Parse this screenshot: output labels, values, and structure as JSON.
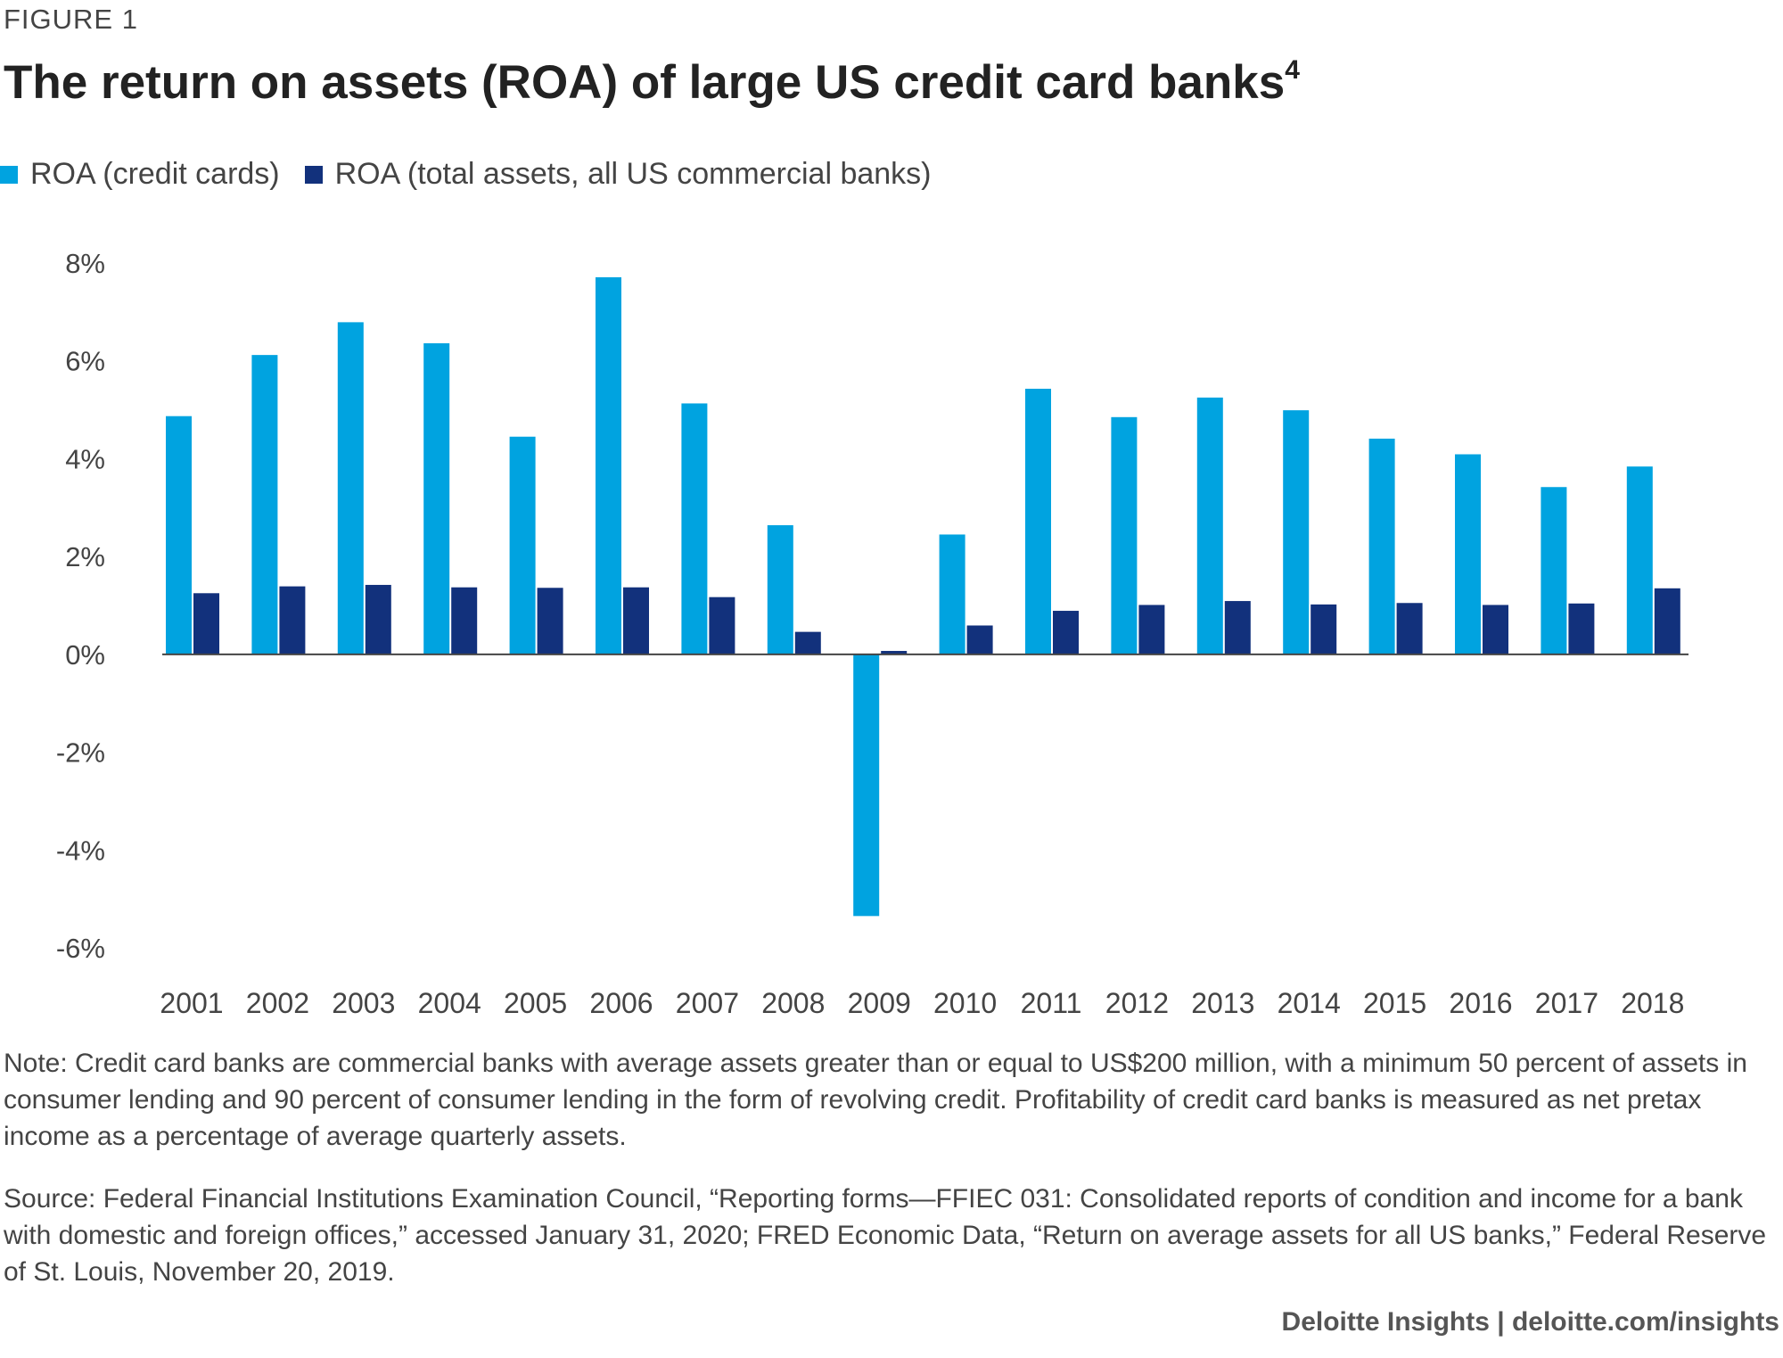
{
  "figure_label": "FIGURE 1",
  "title": "The return on assets (ROA) of large US credit card banks",
  "title_superscript": "4",
  "legend": [
    {
      "label": "ROA (credit cards)",
      "color": "#00A3E0"
    },
    {
      "label": "ROA (total assets, all US commercial banks)",
      "color": "#12317C"
    }
  ],
  "chart_data": {
    "type": "bar",
    "title": "The return on assets (ROA) of large US credit card banks",
    "xlabel": "",
    "ylabel": "",
    "ylim": [
      -6,
      8
    ],
    "yticks": [
      8,
      6,
      4,
      2,
      0,
      -2,
      -4,
      -6
    ],
    "ytick_labels": [
      "8%",
      "6%",
      "4%",
      "2%",
      "0%",
      "-2%",
      "-4%",
      "-6%"
    ],
    "grid": false,
    "legend_position": "top-left",
    "categories": [
      "2001",
      "2002",
      "2003",
      "2004",
      "2005",
      "2006",
      "2007",
      "2008",
      "2009",
      "2010",
      "2011",
      "2012",
      "2013",
      "2014",
      "2015",
      "2016",
      "2017",
      "2018"
    ],
    "series": [
      {
        "name": "ROA (credit cards)",
        "color": "#00A3E0",
        "values": [
          4.87,
          6.12,
          6.79,
          6.36,
          4.45,
          7.71,
          5.13,
          2.64,
          -5.35,
          2.45,
          5.43,
          4.85,
          5.25,
          4.99,
          4.41,
          4.09,
          3.42,
          3.84
        ]
      },
      {
        "name": "ROA (total assets, all US commercial banks)",
        "color": "#12317C",
        "values": [
          1.25,
          1.39,
          1.42,
          1.37,
          1.36,
          1.37,
          1.17,
          0.46,
          0.07,
          0.59,
          0.89,
          1.01,
          1.09,
          1.02,
          1.05,
          1.01,
          1.04,
          1.35
        ]
      }
    ]
  },
  "note": "Note: Credit card banks are commercial banks with average assets greater than or equal to US$200 million, with a minimum 50 percent of assets in consumer lending and 90 percent of consumer lending in the form of revolving credit. Profitability of credit card banks is measured as net pretax income as a percentage of average quarterly assets.",
  "source": "Source: Federal Financial Institutions Examination Council, “Reporting forms—FFIEC 031: Consolidated reports of condition and income for a bank with domestic and foreign offices,” accessed January 31, 2020; FRED Economic Data, “Return on average assets for all US banks,” Federal Reserve of St. Louis, November 20, 2019.",
  "footer": "Deloitte Insights | deloitte.com/insights"
}
